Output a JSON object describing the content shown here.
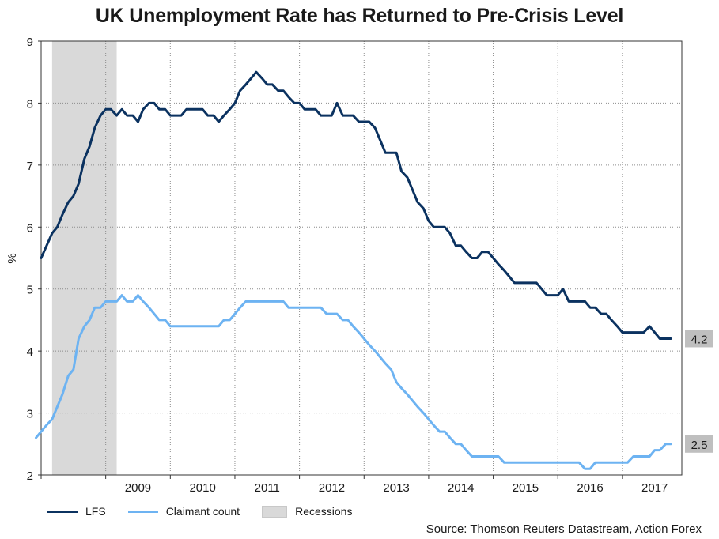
{
  "chart_data": {
    "type": "line",
    "title": "UK Unemployment Rate has Returned to Pre-Crisis Level",
    "ylabel": "%",
    "xlabel": "",
    "ylim": [
      2,
      9
    ],
    "xlim": [
      2008.0,
      2017.92
    ],
    "yticks": [
      2,
      3,
      4,
      5,
      6,
      7,
      8,
      9
    ],
    "xtick_labels": [
      "2009",
      "2010",
      "2011",
      "2012",
      "2013",
      "2014",
      "2015",
      "2016",
      "2017"
    ],
    "grid": true,
    "recession": {
      "name": "Recessions",
      "start": 2008.17,
      "end": 2009.17
    },
    "series": [
      {
        "name": "LFS",
        "color": "#0b3260",
        "end_label": "4.2",
        "points": [
          [
            2008.0,
            5.5
          ],
          [
            2008.17,
            5.9
          ],
          [
            2008.25,
            6.0
          ],
          [
            2008.33,
            6.2
          ],
          [
            2008.42,
            6.4
          ],
          [
            2008.5,
            6.5
          ],
          [
            2008.58,
            6.7
          ],
          [
            2008.67,
            7.1
          ],
          [
            2008.75,
            7.3
          ],
          [
            2008.83,
            7.6
          ],
          [
            2008.92,
            7.8
          ],
          [
            2009.0,
            7.9
          ],
          [
            2009.08,
            7.9
          ],
          [
            2009.17,
            7.8
          ],
          [
            2009.25,
            7.9
          ],
          [
            2009.33,
            7.8
          ],
          [
            2009.42,
            7.8
          ],
          [
            2009.5,
            7.7
          ],
          [
            2009.58,
            7.9
          ],
          [
            2009.67,
            8.0
          ],
          [
            2009.75,
            8.0
          ],
          [
            2009.83,
            7.9
          ],
          [
            2009.92,
            7.9
          ],
          [
            2010.0,
            7.8
          ],
          [
            2010.08,
            7.8
          ],
          [
            2010.17,
            7.8
          ],
          [
            2010.25,
            7.9
          ],
          [
            2010.33,
            7.9
          ],
          [
            2010.42,
            7.9
          ],
          [
            2010.5,
            7.9
          ],
          [
            2010.58,
            7.8
          ],
          [
            2010.67,
            7.8
          ],
          [
            2010.75,
            7.7
          ],
          [
            2010.83,
            7.8
          ],
          [
            2010.92,
            7.9
          ],
          [
            2011.0,
            8.0
          ],
          [
            2011.08,
            8.2
          ],
          [
            2011.17,
            8.3
          ],
          [
            2011.25,
            8.4
          ],
          [
            2011.33,
            8.5
          ],
          [
            2011.42,
            8.4
          ],
          [
            2011.5,
            8.3
          ],
          [
            2011.58,
            8.3
          ],
          [
            2011.67,
            8.2
          ],
          [
            2011.75,
            8.2
          ],
          [
            2011.83,
            8.1
          ],
          [
            2011.92,
            8.0
          ],
          [
            2012.0,
            8.0
          ],
          [
            2012.08,
            7.9
          ],
          [
            2012.17,
            7.9
          ],
          [
            2012.25,
            7.9
          ],
          [
            2012.33,
            7.8
          ],
          [
            2012.42,
            7.8
          ],
          [
            2012.5,
            7.8
          ],
          [
            2012.58,
            8.0
          ],
          [
            2012.67,
            7.8
          ],
          [
            2012.75,
            7.8
          ],
          [
            2012.83,
            7.8
          ],
          [
            2012.92,
            7.7
          ],
          [
            2013.0,
            7.7
          ],
          [
            2013.08,
            7.7
          ],
          [
            2013.17,
            7.6
          ],
          [
            2013.25,
            7.4
          ],
          [
            2013.33,
            7.2
          ],
          [
            2013.42,
            7.2
          ],
          [
            2013.5,
            7.2
          ],
          [
            2013.58,
            6.9
          ],
          [
            2013.67,
            6.8
          ],
          [
            2013.75,
            6.6
          ],
          [
            2013.83,
            6.4
          ],
          [
            2013.92,
            6.3
          ],
          [
            2014.0,
            6.1
          ],
          [
            2014.08,
            6.0
          ],
          [
            2014.17,
            6.0
          ],
          [
            2014.25,
            6.0
          ],
          [
            2014.33,
            5.9
          ],
          [
            2014.42,
            5.7
          ],
          [
            2014.5,
            5.7
          ],
          [
            2014.58,
            5.6
          ],
          [
            2014.67,
            5.5
          ],
          [
            2014.75,
            5.5
          ],
          [
            2014.83,
            5.6
          ],
          [
            2014.92,
            5.6
          ],
          [
            2015.0,
            5.5
          ],
          [
            2015.08,
            5.4
          ],
          [
            2015.17,
            5.3
          ],
          [
            2015.25,
            5.2
          ],
          [
            2015.33,
            5.1
          ],
          [
            2015.42,
            5.1
          ],
          [
            2015.5,
            5.1
          ],
          [
            2015.58,
            5.1
          ],
          [
            2015.67,
            5.1
          ],
          [
            2015.75,
            5.0
          ],
          [
            2015.83,
            4.9
          ],
          [
            2015.92,
            4.9
          ],
          [
            2016.0,
            4.9
          ],
          [
            2016.08,
            5.0
          ],
          [
            2016.17,
            4.8
          ],
          [
            2016.25,
            4.8
          ],
          [
            2016.33,
            4.8
          ],
          [
            2016.42,
            4.8
          ],
          [
            2016.5,
            4.7
          ],
          [
            2016.58,
            4.7
          ],
          [
            2016.67,
            4.6
          ],
          [
            2016.75,
            4.6
          ],
          [
            2016.83,
            4.5
          ],
          [
            2016.92,
            4.4
          ],
          [
            2017.0,
            4.3
          ],
          [
            2017.08,
            4.3
          ],
          [
            2017.17,
            4.3
          ],
          [
            2017.25,
            4.3
          ],
          [
            2017.33,
            4.3
          ],
          [
            2017.42,
            4.4
          ],
          [
            2017.5,
            4.3
          ],
          [
            2017.58,
            4.2
          ],
          [
            2017.67,
            4.2
          ],
          [
            2017.75,
            4.2
          ]
        ]
      },
      {
        "name": "Claimant count",
        "color": "#6db3f2",
        "end_label": "2.5",
        "points": [
          [
            2007.92,
            2.6
          ],
          [
            2008.0,
            2.7
          ],
          [
            2008.08,
            2.8
          ],
          [
            2008.17,
            2.9
          ],
          [
            2008.25,
            3.1
          ],
          [
            2008.33,
            3.3
          ],
          [
            2008.42,
            3.6
          ],
          [
            2008.5,
            3.7
          ],
          [
            2008.58,
            4.2
          ],
          [
            2008.67,
            4.4
          ],
          [
            2008.75,
            4.5
          ],
          [
            2008.83,
            4.7
          ],
          [
            2008.92,
            4.7
          ],
          [
            2009.0,
            4.8
          ],
          [
            2009.08,
            4.8
          ],
          [
            2009.17,
            4.8
          ],
          [
            2009.25,
            4.9
          ],
          [
            2009.33,
            4.8
          ],
          [
            2009.42,
            4.8
          ],
          [
            2009.5,
            4.9
          ],
          [
            2009.58,
            4.8
          ],
          [
            2009.67,
            4.7
          ],
          [
            2009.75,
            4.6
          ],
          [
            2009.83,
            4.5
          ],
          [
            2009.92,
            4.5
          ],
          [
            2010.0,
            4.4
          ],
          [
            2010.08,
            4.4
          ],
          [
            2010.17,
            4.4
          ],
          [
            2010.25,
            4.4
          ],
          [
            2010.33,
            4.4
          ],
          [
            2010.42,
            4.4
          ],
          [
            2010.5,
            4.4
          ],
          [
            2010.58,
            4.4
          ],
          [
            2010.67,
            4.4
          ],
          [
            2010.75,
            4.4
          ],
          [
            2010.83,
            4.5
          ],
          [
            2010.92,
            4.5
          ],
          [
            2011.0,
            4.6
          ],
          [
            2011.08,
            4.7
          ],
          [
            2011.17,
            4.8
          ],
          [
            2011.25,
            4.8
          ],
          [
            2011.33,
            4.8
          ],
          [
            2011.42,
            4.8
          ],
          [
            2011.5,
            4.8
          ],
          [
            2011.58,
            4.8
          ],
          [
            2011.67,
            4.8
          ],
          [
            2011.75,
            4.8
          ],
          [
            2011.83,
            4.7
          ],
          [
            2011.92,
            4.7
          ],
          [
            2012.0,
            4.7
          ],
          [
            2012.08,
            4.7
          ],
          [
            2012.17,
            4.7
          ],
          [
            2012.25,
            4.7
          ],
          [
            2012.33,
            4.7
          ],
          [
            2012.42,
            4.6
          ],
          [
            2012.5,
            4.6
          ],
          [
            2012.58,
            4.6
          ],
          [
            2012.67,
            4.5
          ],
          [
            2012.75,
            4.5
          ],
          [
            2012.83,
            4.4
          ],
          [
            2012.92,
            4.3
          ],
          [
            2013.0,
            4.2
          ],
          [
            2013.08,
            4.1
          ],
          [
            2013.17,
            4.0
          ],
          [
            2013.25,
            3.9
          ],
          [
            2013.33,
            3.8
          ],
          [
            2013.42,
            3.7
          ],
          [
            2013.5,
            3.5
          ],
          [
            2013.58,
            3.4
          ],
          [
            2013.67,
            3.3
          ],
          [
            2013.75,
            3.2
          ],
          [
            2013.83,
            3.1
          ],
          [
            2013.92,
            3.0
          ],
          [
            2014.0,
            2.9
          ],
          [
            2014.08,
            2.8
          ],
          [
            2014.17,
            2.7
          ],
          [
            2014.25,
            2.7
          ],
          [
            2014.33,
            2.6
          ],
          [
            2014.42,
            2.5
          ],
          [
            2014.5,
            2.5
          ],
          [
            2014.58,
            2.4
          ],
          [
            2014.67,
            2.3
          ],
          [
            2014.75,
            2.3
          ],
          [
            2014.83,
            2.3
          ],
          [
            2014.92,
            2.3
          ],
          [
            2015.0,
            2.3
          ],
          [
            2015.08,
            2.3
          ],
          [
            2015.17,
            2.2
          ],
          [
            2015.25,
            2.2
          ],
          [
            2015.33,
            2.2
          ],
          [
            2015.42,
            2.2
          ],
          [
            2015.5,
            2.2
          ],
          [
            2015.58,
            2.2
          ],
          [
            2015.67,
            2.2
          ],
          [
            2015.75,
            2.2
          ],
          [
            2015.83,
            2.2
          ],
          [
            2015.92,
            2.2
          ],
          [
            2016.0,
            2.2
          ],
          [
            2016.08,
            2.2
          ],
          [
            2016.17,
            2.2
          ],
          [
            2016.25,
            2.2
          ],
          [
            2016.33,
            2.2
          ],
          [
            2016.42,
            2.1
          ],
          [
            2016.5,
            2.1
          ],
          [
            2016.58,
            2.2
          ],
          [
            2016.67,
            2.2
          ],
          [
            2016.75,
            2.2
          ],
          [
            2016.83,
            2.2
          ],
          [
            2016.92,
            2.2
          ],
          [
            2017.0,
            2.2
          ],
          [
            2017.08,
            2.2
          ],
          [
            2017.17,
            2.3
          ],
          [
            2017.25,
            2.3
          ],
          [
            2017.33,
            2.3
          ],
          [
            2017.42,
            2.3
          ],
          [
            2017.5,
            2.4
          ],
          [
            2017.58,
            2.4
          ],
          [
            2017.67,
            2.5
          ],
          [
            2017.75,
            2.5
          ]
        ]
      }
    ]
  },
  "legend": {
    "items": [
      "LFS",
      "Claimant count",
      "Recessions"
    ]
  },
  "source": "Source: Thomson Reuters Datastream, Action Forex"
}
